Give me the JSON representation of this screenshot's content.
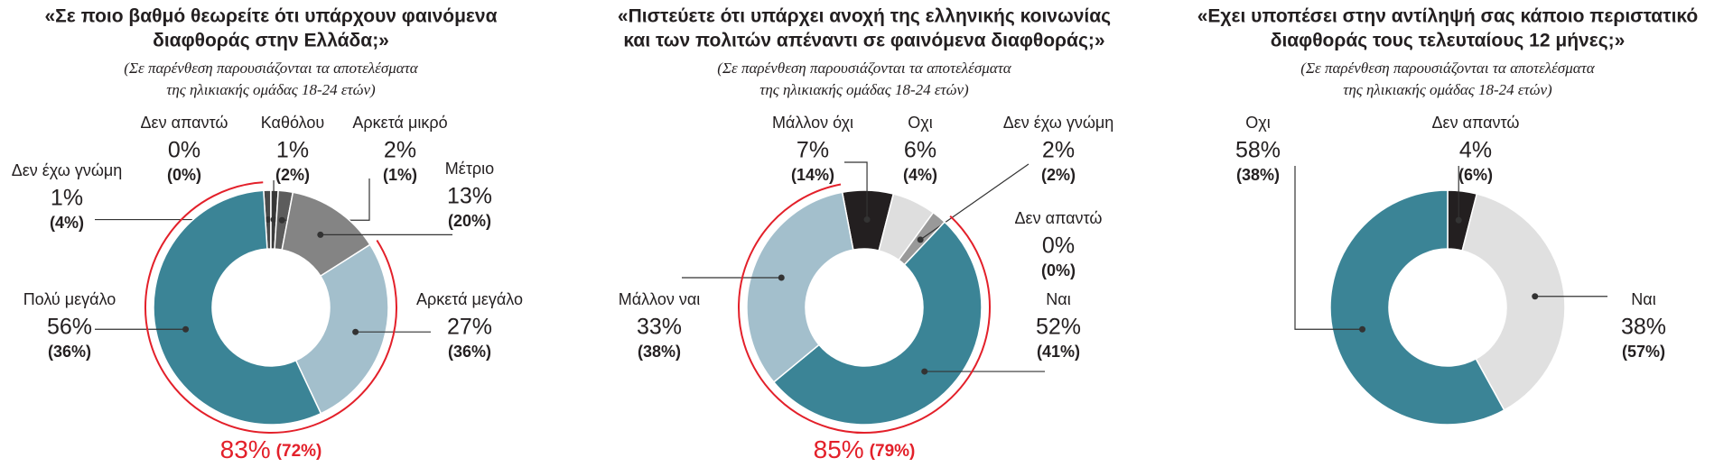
{
  "chart_data": [
    {
      "type": "donut",
      "title": [
        "«Σε ποιο βαθμό θεωρείτε ότι υπάρχουν φαινόμενα",
        "διαφθοράς στην Ελλάδα;»"
      ],
      "subtitle": [
        "(Σε παρένθεση παρουσιάζονται τα αποτελέσματα",
        "της ηλικιακής ομάδας 18-24 ετών)"
      ],
      "categories": [
        "Δεν έχω γνώμη",
        "Δεν απαντώ",
        "Καθόλου",
        "Αρκετά μικρό",
        "Μέτριο",
        "Αρκετά μεγάλο",
        "Πολύ μεγάλο"
      ],
      "values": [
        1,
        0,
        1,
        2,
        13,
        27,
        56
      ],
      "value_labels": [
        "1%",
        "0%",
        "1%",
        "2%",
        "13%",
        "27%",
        "56%"
      ],
      "youth_values": [
        4,
        0,
        2,
        1,
        20,
        36,
        36
      ],
      "youth_value_labels": [
        "(4%)",
        "(0%)",
        "(2%)",
        "(1%)",
        "(20%)",
        "(36%)",
        "(36%)"
      ],
      "colors": [
        "#4a4a4a",
        "#2b2b2b",
        "#3a3a3a",
        "#5c5c5c",
        "#848484",
        "#a3bfcc",
        "#3b8496"
      ],
      "highlight": {
        "value": 83,
        "label": "83%",
        "youth_value": 72,
        "youth_label": "(72%)",
        "color": "#e3202a"
      }
    },
    {
      "type": "donut",
      "title": [
        "«Πιστεύετε ότι υπάρχει ανοχή της ελληνικής κοινωνίας",
        "και των πολιτών απέναντι σε φαινόμενα διαφθοράς;»"
      ],
      "subtitle": [
        "(Σε παρένθεση παρουσιάζονται τα αποτελέσματα",
        "της ηλικιακής ομάδας 18-24 ετών)"
      ],
      "categories": [
        "Μάλλον όχι",
        "Οχι",
        "Δεν έχω γνώμη",
        "Δεν απαντώ",
        "Ναι",
        "Μάλλον ναι"
      ],
      "values": [
        7,
        6,
        2,
        0,
        52,
        33
      ],
      "value_labels": [
        "7%",
        "6%",
        "2%",
        "0%",
        "52%",
        "33%"
      ],
      "youth_values": [
        14,
        4,
        2,
        0,
        41,
        38
      ],
      "youth_value_labels": [
        "(14%)",
        "(4%)",
        "(2%)",
        "(0%)",
        "(41%)",
        "(38%)"
      ],
      "colors": [
        "#231f20",
        "#dedede",
        "#999999",
        "#555555",
        "#3b8496",
        "#a3bfcc"
      ],
      "highlight": {
        "value": 85,
        "label": "85%",
        "youth_value": 79,
        "youth_label": "(79%)",
        "color": "#e3202a"
      }
    },
    {
      "type": "donut",
      "title": [
        "«Εχει υποπέσει στην αντίληψή σας κάποιο περιστατικό",
        "διαφθοράς τους τελευταίους 12 μήνες;»"
      ],
      "subtitle": [
        "(Σε παρένθεση παρουσιάζονται τα αποτελέσματα",
        "της ηλικιακής ομάδας 18-24 ετών)"
      ],
      "categories": [
        "Δεν απαντώ",
        "Ναι",
        "Οχι"
      ],
      "values": [
        4,
        38,
        58
      ],
      "value_labels": [
        "4%",
        "38%",
        "58%"
      ],
      "youth_values": [
        6,
        57,
        38
      ],
      "youth_value_labels": [
        "(6%)",
        "(57%)",
        "(38%)"
      ],
      "colors": [
        "#231f20",
        "#e0e0e0",
        "#3b8496"
      ]
    }
  ]
}
